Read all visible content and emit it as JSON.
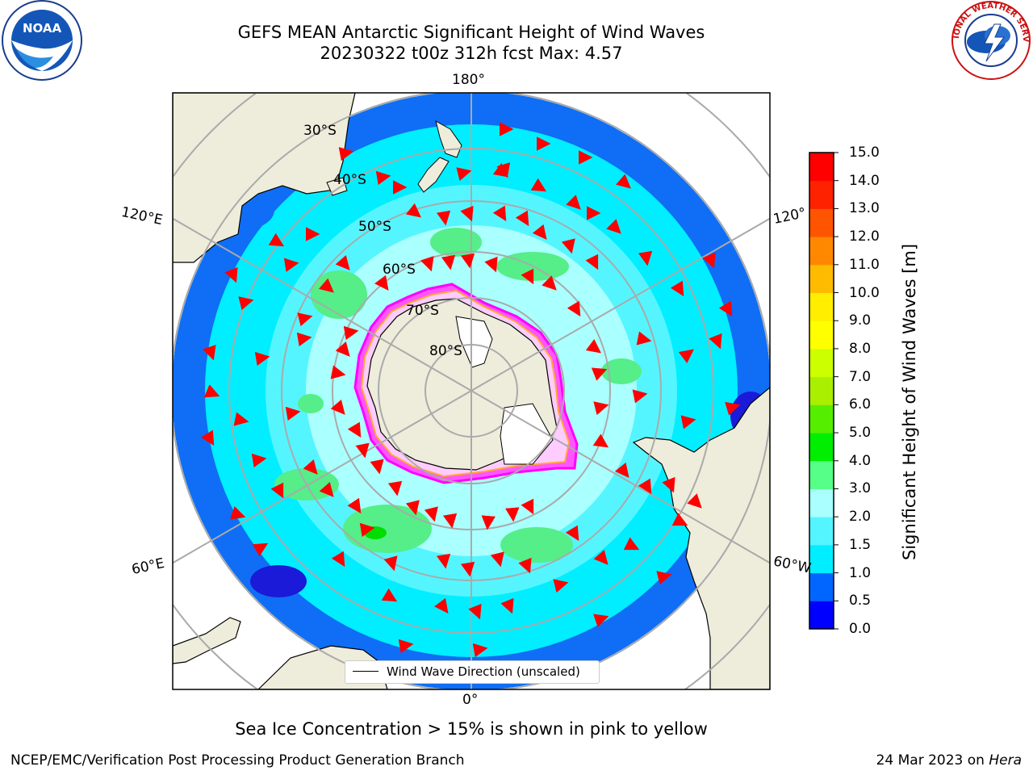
{
  "header": {
    "title_line1": "GEFS MEAN Antarctic Significant Height of Wind Waves",
    "title_line2": "20230322 t00z 312h fcst   Max: 4.57"
  },
  "logos": {
    "left": {
      "icon": "noaa-logo",
      "text": "NOAA"
    },
    "right": {
      "icon": "nws-logo",
      "text": "NATIONAL WEATHER SERVICE"
    }
  },
  "map": {
    "projection": "south-polar-stereographic",
    "longitude_labels": [
      "180°",
      "120°E",
      "120°",
      "60°E",
      "60°W",
      "0°"
    ],
    "latitude_labels": [
      "30°S",
      "40°S",
      "50°S",
      "60°S",
      "70°S",
      "80°S"
    ],
    "land_color": "#eeecdb",
    "ocean_outside_color": "#ffffff",
    "ice_edge_colors": [
      "#ff44ff",
      "#ff99ff",
      "#ffcc44",
      "#ffff66"
    ]
  },
  "legend": {
    "label": "Wind Wave Direction (unscaled)"
  },
  "colorbar": {
    "label": "Significant Height of Wind Waves [m]",
    "ticks": [
      "0.0",
      "0.5",
      "1.0",
      "1.5",
      "2.0",
      "3.0",
      "4.0",
      "5.0",
      "6.0",
      "7.0",
      "8.0",
      "9.0",
      "10.0",
      "11.0",
      "12.0",
      "13.0",
      "14.0",
      "15.0"
    ],
    "colors": [
      "#0000ff",
      "#0066ff",
      "#00eeff",
      "#55f5ff",
      "#aaffff",
      "#55ff88",
      "#00ee00",
      "#55ee00",
      "#aaee00",
      "#ccff00",
      "#ffff00",
      "#ffee00",
      "#ffbb00",
      "#ff8800",
      "#ff5500",
      "#ff2200",
      "#ff0000"
    ]
  },
  "notes": {
    "sea_ice": "Sea Ice Concentration > 15% is shown in pink to yellow"
  },
  "footer": {
    "left": "NCEP/EMC/Verification Post Processing Product Generation Branch",
    "date": "24 Mar 2023 on",
    "machine": "Hera"
  }
}
